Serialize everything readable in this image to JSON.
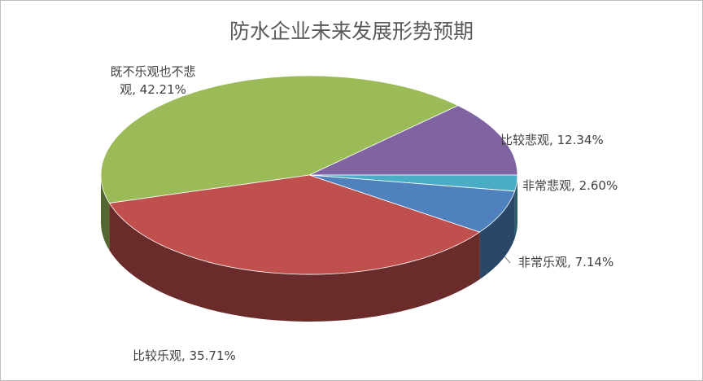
{
  "chart_data": {
    "type": "pie3d",
    "title": "防水企业未来发展形势预期",
    "categories": [
      "比较悲观",
      "非常悲观",
      "非常乐观",
      "比较乐观",
      "既不乐观也不悲观"
    ],
    "values": [
      12.34,
      2.6,
      7.14,
      35.71,
      42.21
    ],
    "value_labels": [
      "12.34%",
      "2.60%",
      "7.14%",
      "35.71%",
      "42.21%"
    ],
    "label_separator": ", ",
    "colors": [
      "#8064a2",
      "#4bacc6",
      "#4f81bd",
      "#c0504d",
      "#9bbb59"
    ]
  }
}
